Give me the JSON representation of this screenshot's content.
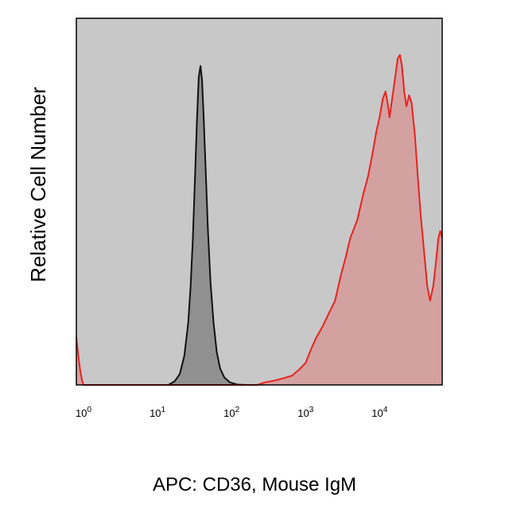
{
  "chart_data": {
    "type": "area",
    "title": "",
    "xlabel": "APC: CD36, Mouse IgM",
    "ylabel": "Relative Cell Number",
    "x_scale": "log",
    "xlim": [
      0.8,
      70000
    ],
    "ylim": [
      0,
      1.0
    ],
    "grid": false,
    "legend": "none",
    "x_ticks": [
      {
        "value": 1,
        "base": "10",
        "exp": "0"
      },
      {
        "value": 10,
        "base": "10",
        "exp": "1"
      },
      {
        "value": 100,
        "base": "10",
        "exp": "2"
      },
      {
        "value": 1000,
        "base": "10",
        "exp": "3"
      },
      {
        "value": 10000,
        "base": "10",
        "exp": "4"
      }
    ],
    "colors": {
      "plot_background": "#c8c8c8",
      "isotype_line": "#111111",
      "isotype_fill": "#909090",
      "sample_line": "#e8231e",
      "sample_fill": "#d4a1a1"
    },
    "series": [
      {
        "color": "#111111",
        "fill": "#909090",
        "points": [
          [
            14,
            0.0
          ],
          [
            17,
            0.01
          ],
          [
            20,
            0.03
          ],
          [
            23,
            0.08
          ],
          [
            26,
            0.17
          ],
          [
            28,
            0.27
          ],
          [
            30,
            0.4
          ],
          [
            32,
            0.56
          ],
          [
            34,
            0.72
          ],
          [
            36,
            0.84
          ],
          [
            38,
            0.87
          ],
          [
            40,
            0.83
          ],
          [
            42,
            0.73
          ],
          [
            45,
            0.57
          ],
          [
            48,
            0.42
          ],
          [
            52,
            0.28
          ],
          [
            57,
            0.17
          ],
          [
            63,
            0.09
          ],
          [
            70,
            0.045
          ],
          [
            80,
            0.02
          ],
          [
            95,
            0.007
          ],
          [
            120,
            0.001
          ],
          [
            160,
            0.0
          ]
        ]
      },
      {
        "color": "#e8231e",
        "fill": "#d4a1a1",
        "points": [
          [
            0.8,
            0.13
          ],
          [
            0.85,
            0.08
          ],
          [
            0.9,
            0.04
          ],
          [
            0.95,
            0.015
          ],
          [
            1.0,
            0.0
          ],
          [
            220,
            0.0
          ],
          [
            280,
            0.007
          ],
          [
            380,
            0.012
          ],
          [
            500,
            0.018
          ],
          [
            650,
            0.025
          ],
          [
            800,
            0.04
          ],
          [
            1000,
            0.06
          ],
          [
            1200,
            0.1
          ],
          [
            1400,
            0.13
          ],
          [
            1700,
            0.16
          ],
          [
            2000,
            0.19
          ],
          [
            2500,
            0.23
          ],
          [
            3000,
            0.3
          ],
          [
            3500,
            0.35
          ],
          [
            4000,
            0.4
          ],
          [
            5000,
            0.45
          ],
          [
            6000,
            0.52
          ],
          [
            7000,
            0.57
          ],
          [
            8000,
            0.63
          ],
          [
            9000,
            0.69
          ],
          [
            10000,
            0.73
          ],
          [
            11000,
            0.78
          ],
          [
            12000,
            0.8
          ],
          [
            12800,
            0.77
          ],
          [
            13600,
            0.73
          ],
          [
            14500,
            0.77
          ],
          [
            16000,
            0.83
          ],
          [
            17500,
            0.89
          ],
          [
            18800,
            0.9
          ],
          [
            20000,
            0.87
          ],
          [
            21500,
            0.8
          ],
          [
            23000,
            0.76
          ],
          [
            25000,
            0.79
          ],
          [
            27000,
            0.77
          ],
          [
            30000,
            0.68
          ],
          [
            33000,
            0.56
          ],
          [
            36000,
            0.46
          ],
          [
            40000,
            0.36
          ],
          [
            44000,
            0.27
          ],
          [
            48000,
            0.23
          ],
          [
            53000,
            0.27
          ],
          [
            58000,
            0.34
          ],
          [
            62000,
            0.4
          ],
          [
            66000,
            0.42
          ],
          [
            70000,
            0.4
          ]
        ]
      }
    ]
  }
}
